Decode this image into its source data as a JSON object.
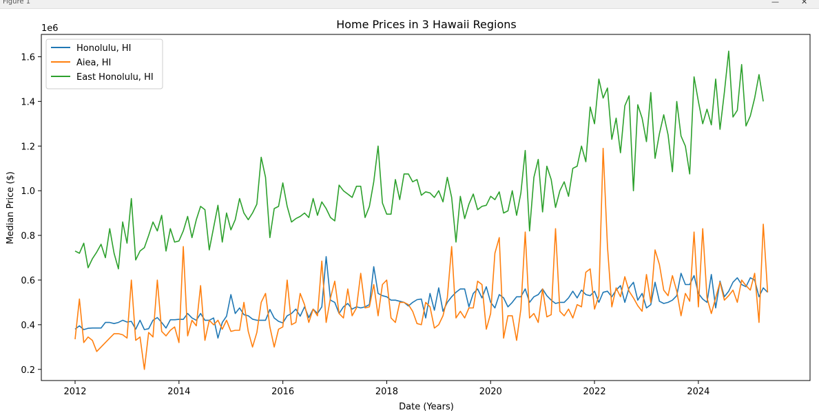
{
  "window": {
    "title": "Figure 1",
    "minimize_glyph": "—",
    "close_glyph": "✕"
  },
  "chart_data": {
    "type": "line",
    "title": "Home Prices in 3 Hawaii Regions",
    "xlabel": "Date (Years)",
    "ylabel": "Median Price ($)",
    "y_offset_label": "1e6",
    "xlim": [
      2011.35,
      2026.15
    ],
    "ylim": [
      0.15,
      1.7
    ],
    "x_ticks": [
      2012,
      2014,
      2016,
      2018,
      2020,
      2022,
      2024
    ],
    "x_tick_labels": [
      "2012",
      "2014",
      "2016",
      "2018",
      "2020",
      "2022",
      "2024"
    ],
    "y_ticks": [
      0.2,
      0.4,
      0.6,
      0.8,
      1.0,
      1.2,
      1.4,
      1.6
    ],
    "y_tick_labels": [
      "0.2",
      "0.4",
      "0.6",
      "0.8",
      "1.0",
      "1.2",
      "1.4",
      "1.6"
    ],
    "grid": false,
    "legend_position": "top-left",
    "x_start": "2012-01",
    "x_step": "1 month",
    "series": [
      {
        "name": "Honolulu, HI",
        "color": "#1f77b4",
        "values": [
          0.38,
          0.395,
          0.378,
          0.384,
          0.385,
          0.385,
          0.385,
          0.41,
          0.41,
          0.405,
          0.41,
          0.42,
          0.412,
          0.415,
          0.38,
          0.42,
          0.378,
          0.382,
          0.42,
          0.432,
          0.41,
          0.385,
          0.422,
          0.422,
          0.424,
          0.424,
          0.45,
          0.43,
          0.42,
          0.45,
          0.42,
          0.42,
          0.43,
          0.34,
          0.41,
          0.438,
          0.535,
          0.45,
          0.475,
          0.445,
          0.44,
          0.425,
          0.42,
          0.42,
          0.42,
          0.468,
          0.43,
          0.415,
          0.408,
          0.44,
          0.45,
          0.47,
          0.438,
          0.48,
          0.432,
          0.47,
          0.45,
          0.48,
          0.705,
          0.51,
          0.5,
          0.45,
          0.48,
          0.495,
          0.47,
          0.48,
          0.475,
          0.48,
          0.49,
          0.66,
          0.54,
          0.53,
          0.525,
          0.51,
          0.51,
          0.505,
          0.5,
          0.484,
          0.5,
          0.512,
          0.515,
          0.43,
          0.54,
          0.465,
          0.565,
          0.46,
          0.5,
          0.525,
          0.545,
          0.56,
          0.56,
          0.48,
          0.54,
          0.56,
          0.52,
          0.57,
          0.5,
          0.475,
          0.535,
          0.52,
          0.48,
          0.5,
          0.525,
          0.525,
          0.56,
          0.5,
          0.525,
          0.535,
          0.56,
          0.53,
          0.51,
          0.495,
          0.5,
          0.5,
          0.52,
          0.55,
          0.52,
          0.555,
          0.535,
          0.53,
          0.55,
          0.5,
          0.545,
          0.55,
          0.525,
          0.555,
          0.575,
          0.5,
          0.565,
          0.59,
          0.51,
          0.54,
          0.475,
          0.49,
          0.59,
          0.505,
          0.495,
          0.5,
          0.51,
          0.53,
          0.63,
          0.58,
          0.58,
          0.62,
          0.54,
          0.515,
          0.5,
          0.625,
          0.475,
          0.595,
          0.525,
          0.55,
          0.59,
          0.61,
          0.58,
          0.57,
          0.61,
          0.6,
          0.525,
          0.565,
          0.545
        ]
      },
      {
        "name": "Aiea, HI",
        "color": "#ff7f0e",
        "values": [
          0.335,
          0.515,
          0.32,
          0.345,
          0.33,
          0.28,
          0.3,
          0.32,
          0.34,
          0.36,
          0.36,
          0.355,
          0.34,
          0.6,
          0.33,
          0.345,
          0.2,
          0.365,
          0.345,
          0.6,
          0.37,
          0.35,
          0.375,
          0.39,
          0.32,
          0.75,
          0.35,
          0.42,
          0.395,
          0.575,
          0.33,
          0.42,
          0.4,
          0.42,
          0.38,
          0.42,
          0.37,
          0.375,
          0.375,
          0.5,
          0.37,
          0.3,
          0.365,
          0.5,
          0.54,
          0.39,
          0.3,
          0.38,
          0.39,
          0.6,
          0.4,
          0.41,
          0.54,
          0.49,
          0.41,
          0.47,
          0.44,
          0.685,
          0.41,
          0.52,
          0.595,
          0.45,
          0.43,
          0.56,
          0.44,
          0.475,
          0.63,
          0.475,
          0.48,
          0.58,
          0.44,
          0.58,
          0.6,
          0.43,
          0.41,
          0.5,
          0.5,
          0.49,
          0.46,
          0.405,
          0.4,
          0.5,
          0.48,
          0.385,
          0.4,
          0.44,
          0.52,
          0.75,
          0.43,
          0.46,
          0.43,
          0.475,
          0.475,
          0.595,
          0.58,
          0.38,
          0.45,
          0.72,
          0.79,
          0.34,
          0.44,
          0.44,
          0.33,
          0.47,
          0.815,
          0.43,
          0.45,
          0.41,
          0.56,
          0.435,
          0.445,
          0.83,
          0.46,
          0.44,
          0.47,
          0.43,
          0.49,
          0.48,
          0.635,
          0.65,
          0.47,
          0.53,
          1.19,
          0.75,
          0.48,
          0.565,
          0.525,
          0.615,
          0.55,
          0.52,
          0.485,
          0.46,
          0.625,
          0.5,
          0.735,
          0.67,
          0.555,
          0.53,
          0.62,
          0.55,
          0.44,
          0.54,
          0.505,
          0.815,
          0.48,
          0.83,
          0.52,
          0.45,
          0.52,
          0.59,
          0.51,
          0.53,
          0.555,
          0.5,
          0.6,
          0.575,
          0.555,
          0.63,
          0.41,
          0.85,
          0.545
        ]
      },
      {
        "name": "East Honolulu, HI",
        "color": "#2ca02c",
        "values": [
          0.73,
          0.72,
          0.765,
          0.655,
          0.695,
          0.725,
          0.76,
          0.7,
          0.83,
          0.72,
          0.65,
          0.86,
          0.765,
          0.965,
          0.69,
          0.73,
          0.745,
          0.8,
          0.86,
          0.82,
          0.89,
          0.73,
          0.83,
          0.77,
          0.775,
          0.82,
          0.885,
          0.79,
          0.87,
          0.93,
          0.915,
          0.735,
          0.835,
          0.935,
          0.77,
          0.9,
          0.825,
          0.87,
          0.965,
          0.9,
          0.87,
          0.9,
          0.94,
          1.15,
          1.06,
          0.79,
          0.92,
          0.93,
          1.035,
          0.93,
          0.86,
          0.875,
          0.885,
          0.9,
          0.88,
          0.965,
          0.89,
          0.95,
          0.92,
          0.88,
          0.865,
          1.025,
          1.0,
          0.985,
          0.97,
          1.02,
          1.02,
          0.88,
          0.93,
          1.04,
          1.2,
          0.945,
          0.895,
          0.895,
          1.05,
          0.96,
          1.075,
          1.075,
          1.04,
          1.05,
          0.98,
          0.995,
          0.99,
          0.97,
          1.0,
          0.95,
          1.06,
          0.97,
          0.77,
          0.975,
          0.875,
          0.94,
          0.985,
          0.915,
          0.93,
          0.935,
          0.975,
          0.96,
          0.995,
          0.9,
          0.91,
          1.0,
          0.89,
          0.99,
          1.18,
          0.82,
          1.06,
          1.14,
          0.905,
          1.11,
          1.05,
          0.925,
          1.0,
          1.04,
          0.975,
          1.1,
          1.11,
          1.2,
          1.13,
          1.375,
          1.3,
          1.5,
          1.415,
          1.46,
          1.23,
          1.325,
          1.17,
          1.38,
          1.425,
          1.0,
          1.385,
          1.325,
          1.22,
          1.44,
          1.145,
          1.255,
          1.34,
          1.25,
          1.085,
          1.4,
          1.245,
          1.2,
          1.075,
          1.51,
          1.4,
          1.3,
          1.365,
          1.295,
          1.5,
          1.275,
          1.44,
          1.625,
          1.33,
          1.36,
          1.565,
          1.29,
          1.335,
          1.415,
          1.52,
          1.4
        ]
      }
    ]
  }
}
